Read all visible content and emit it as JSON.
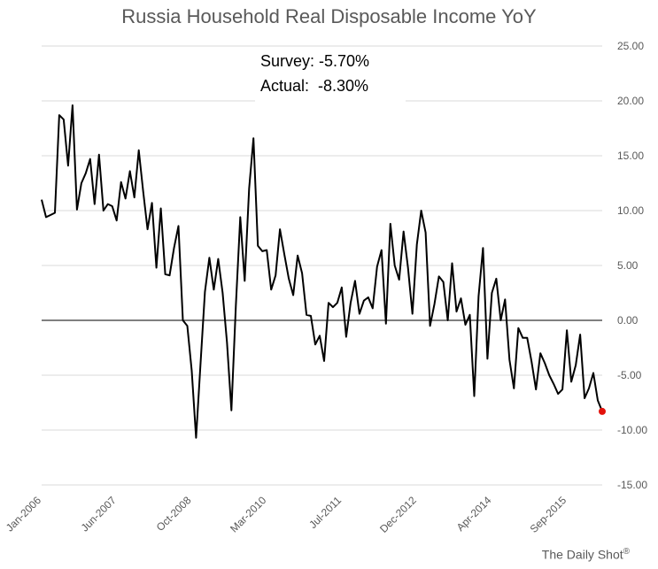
{
  "chart_data": {
    "type": "line",
    "title": "Russia Household Real Disposable Income YoY",
    "xlabel": "",
    "ylabel": "",
    "ylim": [
      -15,
      25
    ],
    "yticks": [
      "25.00",
      "20.00",
      "15.00",
      "10.00",
      "5.00",
      "0.00",
      "-5.00",
      "-10.00",
      "-15.00"
    ],
    "xtick_labels": [
      "Jan-2006",
      "Jun-2007",
      "Oct-2008",
      "Mar-2010",
      "Jul-2011",
      "Dec-2012",
      "Apr-2014",
      "Sep-2015"
    ],
    "x_start": "Jan-2006",
    "x_end": "Nov-2016",
    "grid": true,
    "series": [
      {
        "color": "#000000",
        "values": [
          11.0,
          9.4,
          9.6,
          9.8,
          18.7,
          18.3,
          14.1,
          19.6,
          10.1,
          12.5,
          13.4,
          14.7,
          10.6,
          15.1,
          10.0,
          10.6,
          10.4,
          9.1,
          12.6,
          11.1,
          13.6,
          11.2,
          15.5,
          11.8,
          8.3,
          10.7,
          4.8,
          10.2,
          4.2,
          4.1,
          6.6,
          8.6,
          0.0,
          -0.5,
          -4.6,
          -10.7,
          -4.0,
          2.6,
          5.7,
          2.8,
          5.6,
          2.5,
          -2.0,
          -8.2,
          1.3,
          9.4,
          3.6,
          12.0,
          16.6,
          6.8,
          6.3,
          6.4,
          2.8,
          4.1,
          8.3,
          6.0,
          3.8,
          2.3,
          5.9,
          4.3,
          0.5,
          0.4,
          -2.2,
          -1.4,
          -3.7,
          1.6,
          1.2,
          1.6,
          3.0,
          -1.5,
          1.6,
          3.6,
          0.6,
          1.8,
          2.1,
          1.1,
          4.9,
          6.4,
          -0.3,
          8.8,
          5.0,
          3.7,
          8.1,
          4.8,
          0.6,
          6.9,
          10.0,
          8.0,
          -0.5,
          1.5,
          4.0,
          3.5,
          0.0,
          5.2,
          0.8,
          2.0,
          -0.4,
          0.5,
          -6.9,
          2.2,
          6.6,
          -3.5,
          2.5,
          3.8,
          0.0,
          1.9,
          -3.6,
          -6.2,
          -0.7,
          -1.6,
          -1.6,
          -3.8,
          -6.3,
          -3.0,
          -3.9,
          -5.0,
          -5.8,
          -6.7,
          -6.3,
          -0.9,
          -5.6,
          -4.1,
          -1.3,
          -7.1,
          -6.2,
          -4.8,
          -7.3,
          -8.3
        ]
      }
    ],
    "highlight_last_point": {
      "color": "#e3120b"
    }
  },
  "annotation": {
    "survey": "Survey: -5.70%",
    "actual": "Actual:  -8.30%"
  },
  "credit": {
    "text": "The Daily Shot",
    "mark": "®"
  }
}
